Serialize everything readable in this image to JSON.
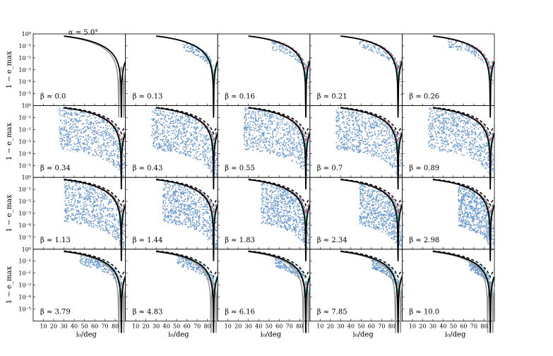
{
  "figure": {
    "top_label": "α = 5.0°",
    "y_axis_label": "1 − e_max",
    "x_axis_label": "i₀/deg"
  },
  "chart_data": {
    "type": "scatter",
    "grid": false,
    "layout": "4 rows × 5 columns of panels sharing axes",
    "x_axis": {
      "label": "i₀/deg",
      "range": [
        0,
        90
      ],
      "ticks": [
        10,
        20,
        30,
        40,
        50,
        60,
        70,
        80
      ]
    },
    "y_axis": {
      "label": "1 − e_max",
      "scale": "log",
      "range": [
        1e-06,
        1
      ],
      "tick_labels": [
        "10⁰",
        "10⁻¹",
        "10⁻²",
        "10⁻³",
        "10⁻⁴",
        "10⁻⁵"
      ]
    },
    "colors": {
      "scatter": "#6b9bd2",
      "teal_line": "#3aa795",
      "dashed_red": "#d9506c",
      "solid_black": "#000000",
      "dashed_black": "#000000",
      "grey_line": "#999999"
    },
    "panels": [
      {
        "label": "β ≈ 0.0"
      },
      {
        "label": "β ≈ 0.13"
      },
      {
        "label": "β ≈ 0.16"
      },
      {
        "label": "β ≈ 0.21"
      },
      {
        "label": "β ≈ 0.26"
      },
      {
        "label": "β ≈ 0.34"
      },
      {
        "label": "β ≈ 0.43"
      },
      {
        "label": "β ≈ 0.55"
      },
      {
        "label": "β ≈ 0.7"
      },
      {
        "label": "β ≈ 0.89"
      },
      {
        "label": "β ≈ 1.13"
      },
      {
        "label": "β ≈ 1.44"
      },
      {
        "label": "β ≈ 1.83"
      },
      {
        "label": "β ≈ 2.34"
      },
      {
        "label": "β ≈ 2.98"
      },
      {
        "label": "β ≈ 3.79"
      },
      {
        "label": "β ≈ 4.83"
      },
      {
        "label": "β ≈ 6.16"
      },
      {
        "label": "β ≈ 7.85"
      },
      {
        "label": "β ≈ 10.0"
      }
    ]
  }
}
